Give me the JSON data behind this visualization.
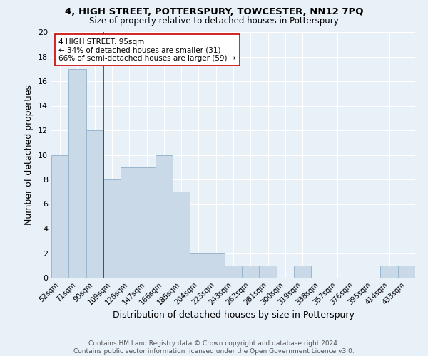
{
  "title": "4, HIGH STREET, POTTERSPURY, TOWCESTER, NN12 7PQ",
  "subtitle": "Size of property relative to detached houses in Potterspury",
  "xlabel": "Distribution of detached houses by size in Potterspury",
  "ylabel": "Number of detached properties",
  "categories": [
    "52sqm",
    "71sqm",
    "90sqm",
    "109sqm",
    "128sqm",
    "147sqm",
    "166sqm",
    "185sqm",
    "204sqm",
    "223sqm",
    "243sqm",
    "262sqm",
    "281sqm",
    "300sqm",
    "319sqm",
    "338sqm",
    "357sqm",
    "376sqm",
    "395sqm",
    "414sqm",
    "433sqm"
  ],
  "values": [
    10,
    17,
    12,
    8,
    9,
    9,
    10,
    7,
    2,
    2,
    1,
    1,
    1,
    0,
    1,
    0,
    0,
    0,
    0,
    1,
    1
  ],
  "bar_color": "#c9d9e8",
  "bar_edge_color": "#9ab5cc",
  "vline_x": 2.5,
  "vline_color": "#cc0000",
  "annotation_text": "4 HIGH STREET: 95sqm\n← 34% of detached houses are smaller (31)\n66% of semi-detached houses are larger (59) →",
  "annotation_box_color": "white",
  "annotation_box_edge_color": "#cc0000",
  "ylim": [
    0,
    20
  ],
  "yticks": [
    0,
    2,
    4,
    6,
    8,
    10,
    12,
    14,
    16,
    18,
    20
  ],
  "footer": "Contains HM Land Registry data © Crown copyright and database right 2024.\nContains public sector information licensed under the Open Government Licence v3.0.",
  "background_color": "#e8f0f8",
  "grid_color": "white",
  "title_fontsize": 9.5,
  "subtitle_fontsize": 8.5,
  "annotation_fontsize": 7.5
}
